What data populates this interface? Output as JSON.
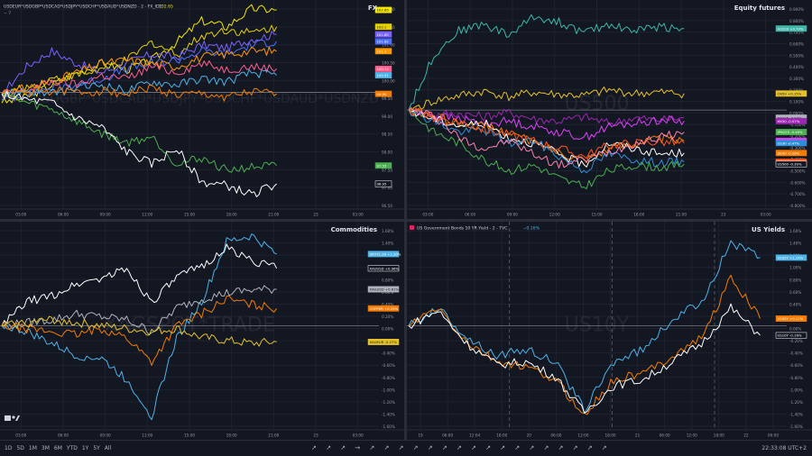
{
  "layout_title": "",
  "panels": [
    {
      "key": "fx",
      "title": "FX",
      "header_text": "USDEUR*USDGBP*USDCAD*USDJPY*USDCHF*USDAUD*USDNZD - 2 - FX_IDC",
      "header_value": "102.65",
      "watermark": "EUR*USDGBP*USDCAD*USDJPY*USDCHF*USDAUD*USDNZD",
      "legend_sub": "− 7",
      "time_labels": [
        "03:00",
        "06:00",
        "09:00",
        "12:00",
        "15:00",
        "18:00",
        "21:00",
        "23",
        "03:00"
      ],
      "y_labels": [
        "102.00",
        "101.50",
        "101.00",
        "100.50",
        "100.00",
        "99.50",
        "99.00",
        "98.50",
        "98.00",
        "97.50",
        "97.00",
        "96.50"
      ],
      "tags": [
        {
          "text": "102.65",
          "color": "#f5e700"
        },
        {
          "text": "102.1",
          "color": "#e6d000"
        },
        {
          "text": "101.85",
          "color": "#7b61ff"
        },
        {
          "text": "101.62",
          "color": "#4f6fff"
        },
        {
          "text": "101.3",
          "color": "#ff9800"
        },
        {
          "text": "100.72",
          "color": "#ff5d8f"
        },
        {
          "text": "100.51",
          "color": "#4fb3e8"
        },
        {
          "text": "99.90",
          "color": "#f57c00"
        },
        {
          "text": "97.55",
          "color": "#4caf50"
        },
        {
          "text": "96.95",
          "color": "#ffffff"
        }
      ]
    },
    {
      "key": "eq",
      "title": "Equity futures",
      "header_text": "",
      "header_value": "",
      "watermark": "US500",
      "legend_sub": "",
      "time_labels": [
        "03:00",
        "06:00",
        "09:00",
        "12:00",
        "15:00",
        "18:00",
        "21:00",
        "23",
        "03:00"
      ],
      "y_labels": [
        "0.900%",
        "0.800%",
        "0.700%",
        "0.600%",
        "0.500%",
        "0.400%",
        "0.300%",
        "0.200%",
        "0.100%",
        "0.000%",
        "-0.100%",
        "-0.200%",
        "-0.300%",
        "-0.400%",
        "-0.500%",
        "-0.600%",
        "-0.700%",
        "-0.800%"
      ],
      "tags": [
        {
          "text": "AU200 +0.74%",
          "color": "#3fb6a8"
        },
        {
          "text": "CN50 +0.15%",
          "color": "#e6c229"
        },
        {
          "text": "NK225 -0.03%",
          "color": "#b0b3bb"
        },
        {
          "text": "HK50 -0.07%",
          "color": "#9c27b0"
        },
        {
          "text": "SPX -0.1%",
          "color": "#e040fb"
        },
        {
          "text": "DE40 -0.28%",
          "color": "#f57c00"
        },
        {
          "text": "EUSTX50 -0.30%",
          "color": "#ff5722"
        },
        {
          "text": "US500 -0.39%",
          "color": "#ffffff"
        },
        {
          "text": "US30 -0.47%",
          "color": "#2f8fd6"
        },
        {
          "text": "JPN225 -0.49%",
          "color": "#4caf50"
        }
      ]
    },
    {
      "key": "cmd",
      "title": "Commodities",
      "header_text": "",
      "header_value": "",
      "watermark": "XAGSPOT*TRADE",
      "legend_sub": "",
      "time_labels": [
        "03:00",
        "06:00",
        "09:00",
        "12:00",
        "15:00",
        "18:00",
        "21:00",
        "23",
        "03:00"
      ],
      "y_labels": [
        "1.60%",
        "1.40%",
        "1.20%",
        "1.00%",
        "0.80%",
        "0.60%",
        "0.40%",
        "0.20%",
        "0.00%",
        "-0.20%",
        "-0.40%",
        "-0.60%",
        "-0.80%",
        "-1.00%",
        "-1.20%",
        "-1.40%",
        "-1.60%"
      ],
      "tags": [
        {
          "text": "SPOT1.26 +1.20%",
          "color": "#4fb3e8"
        },
        {
          "text": "XAUUSD +0.96%",
          "color": "#ffffff"
        },
        {
          "text": "XAGUSD +0.61%",
          "color": "#b0b3bb"
        },
        {
          "text": "COPPER +0.29%",
          "color": "#f57c00"
        },
        {
          "text": "XAUEUR -0.27%",
          "color": "#e6c229"
        }
      ]
    },
    {
      "key": "yld",
      "title": "US Yields",
      "header_text": "US Government Bonds 10 YR Yield - 2 - TVC",
      "header_value": "−0.16%",
      "watermark": "US10Y",
      "legend_sub": "",
      "time_labels": [
        "19",
        "06:00",
        "12:04",
        "18:00",
        "20",
        "06:00",
        "12:00",
        "18:00",
        "21",
        "06:00",
        "12:00",
        "18:00",
        "22",
        "06:00"
      ],
      "y_labels": [
        "1.60%",
        "1.40%",
        "1.20%",
        "1.00%",
        "0.80%",
        "0.60%",
        "0.40%",
        "0.20%",
        "0.00%",
        "-0.20%",
        "-0.40%",
        "-0.60%",
        "-0.80%",
        "-1.00%",
        "-1.20%",
        "-1.40%",
        "-1.60%"
      ],
      "tags": [
        {
          "text": "US02Y +1.14%",
          "color": "#4fb3e8"
        },
        {
          "text": "US05Y +0.12%",
          "color": "#f57c00"
        },
        {
          "text": "US10Y -0.16%",
          "color": "#ffffff"
        }
      ]
    }
  ],
  "bottom_bar": {
    "timeframes": [
      "1D",
      "5D",
      "1M",
      "3M",
      "6M",
      "YTD",
      "1Y",
      "5Y",
      "All"
    ],
    "tool_icons": "↗ ↗ ↗ → ↗ ↗ ↗ ↗ ↗ ↗ ↗ ↗ ↗ ↗ ↗ ↗ ↗ ↗ ↗ ↗ ↗",
    "clock": "22:33:08 UTC+2"
  },
  "chart_data": [
    {
      "type": "line",
      "title": "FX",
      "ylim": [
        96.3,
        102.8
      ],
      "grid": true,
      "baseline": 99.95,
      "series": [
        {
          "color": "#f5e700",
          "values": [
            99.6,
            99.8,
            100.2,
            100.6,
            100.9,
            100.7,
            101.0,
            101.6,
            102.3,
            102.1,
            102.7,
            102.65
          ]
        },
        {
          "color": "#e6d000",
          "values": [
            99.9,
            100.1,
            100.4,
            100.5,
            100.7,
            101.0,
            101.6,
            101.2,
            101.8,
            102.0,
            101.9,
            102.1
          ]
        },
        {
          "color": "#7b61ff",
          "values": [
            99.9,
            100.8,
            101.3,
            100.9,
            100.6,
            100.9,
            101.2,
            101.1,
            101.5,
            101.4,
            101.7,
            101.85
          ]
        },
        {
          "color": "#4f6fff",
          "values": [
            99.7,
            99.9,
            100.1,
            100.2,
            100.4,
            100.7,
            100.9,
            101.0,
            101.3,
            101.2,
            101.5,
            101.62
          ]
        },
        {
          "color": "#ff9800",
          "values": [
            99.9,
            100.1,
            100.3,
            100.6,
            100.9,
            101.0,
            100.9,
            100.8,
            101.1,
            101.2,
            101.3,
            101.3
          ]
        },
        {
          "color": "#ff5d8f",
          "values": [
            99.9,
            100.0,
            100.3,
            100.2,
            100.5,
            100.4,
            100.8,
            100.6,
            100.9,
            100.7,
            100.8,
            100.72
          ]
        },
        {
          "color": "#4fb3e8",
          "values": [
            99.9,
            100.0,
            99.9,
            100.1,
            100.2,
            100.0,
            100.3,
            100.2,
            100.4,
            100.3,
            100.6,
            100.51
          ]
        },
        {
          "color": "#f57c00",
          "values": [
            99.9,
            99.95,
            100.0,
            99.95,
            100.0,
            99.9,
            100.1,
            99.85,
            99.9,
            99.8,
            99.95,
            99.9
          ]
        },
        {
          "color": "#4caf50",
          "values": [
            99.9,
            99.6,
            99.4,
            99.0,
            98.6,
            98.3,
            98.5,
            97.6,
            97.8,
            97.4,
            97.5,
            97.55
          ]
        },
        {
          "color": "#ffffff",
          "values": [
            99.9,
            99.7,
            99.6,
            99.1,
            98.8,
            98.0,
            97.6,
            98.1,
            97.0,
            96.9,
            96.6,
            96.95
          ]
        }
      ]
    },
    {
      "type": "line",
      "title": "Equity futures",
      "ylim": [
        -0.85,
        0.95
      ],
      "grid": true,
      "baseline": 0.0,
      "series": [
        {
          "color": "#3fb6a8",
          "values": [
            0.0,
            0.5,
            0.72,
            0.78,
            0.68,
            0.85,
            0.8,
            0.7,
            0.78,
            0.72,
            0.76,
            0.74
          ]
        },
        {
          "color": "#e6c229",
          "values": [
            0.0,
            0.08,
            0.13,
            0.17,
            0.12,
            0.16,
            0.14,
            0.13,
            0.18,
            0.15,
            0.16,
            0.15
          ]
        },
        {
          "color": "#9c27b0",
          "values": [
            0.0,
            -0.04,
            -0.03,
            -0.06,
            -0.02,
            -0.08,
            -0.1,
            -0.06,
            -0.12,
            -0.07,
            -0.09,
            -0.07
          ]
        },
        {
          "color": "#e040fb",
          "values": [
            0.0,
            -0.05,
            -0.08,
            -0.12,
            -0.1,
            -0.15,
            -0.2,
            -0.25,
            -0.15,
            -0.12,
            -0.09,
            -0.1
          ]
        },
        {
          "color": "#f57c00",
          "values": [
            0.0,
            -0.06,
            -0.12,
            -0.15,
            -0.2,
            -0.3,
            -0.38,
            -0.45,
            -0.35,
            -0.3,
            -0.26,
            -0.28
          ]
        },
        {
          "color": "#ffffff",
          "values": [
            0.0,
            -0.08,
            -0.14,
            -0.12,
            -0.25,
            -0.3,
            -0.4,
            -0.5,
            -0.3,
            -0.35,
            -0.4,
            -0.39
          ]
        },
        {
          "color": "#2f8fd6",
          "values": [
            0.0,
            -0.1,
            -0.2,
            -0.18,
            -0.3,
            -0.28,
            -0.42,
            -0.55,
            -0.4,
            -0.45,
            -0.48,
            -0.47
          ]
        },
        {
          "color": "#4caf50",
          "values": [
            0.0,
            -0.2,
            -0.3,
            -0.45,
            -0.55,
            -0.5,
            -0.62,
            -0.7,
            -0.55,
            -0.5,
            -0.52,
            -0.49
          ]
        },
        {
          "color": "#ff5722",
          "values": [
            0.0,
            -0.07,
            -0.1,
            -0.18,
            -0.22,
            -0.28,
            -0.35,
            -0.42,
            -0.32,
            -0.3,
            -0.29,
            -0.3
          ]
        },
        {
          "color": "#ff80ab",
          "values": [
            0.0,
            -0.05,
            -0.25,
            -0.35,
            -0.28,
            -0.4,
            -0.5,
            -0.45,
            -0.38,
            -0.3,
            -0.25,
            -0.2
          ]
        }
      ]
    },
    {
      "type": "line",
      "title": "Commodities",
      "ylim": [
        -1.65,
        1.65
      ],
      "grid": true,
      "baseline": 0.0,
      "series": [
        {
          "color": "#4fb3e8",
          "values": [
            0.0,
            -0.1,
            -0.3,
            -0.5,
            -0.55,
            -0.9,
            -1.5,
            -0.2,
            0.4,
            1.4,
            1.5,
            1.2
          ]
        },
        {
          "color": "#ffffff",
          "values": [
            0.0,
            0.4,
            0.5,
            0.7,
            0.8,
            0.95,
            0.4,
            0.8,
            1.0,
            1.3,
            1.1,
            0.96
          ]
        },
        {
          "color": "#b0b3bb",
          "values": [
            0.0,
            0.05,
            0.1,
            0.2,
            0.15,
            0.1,
            -0.1,
            0.3,
            0.45,
            0.55,
            0.6,
            0.61
          ]
        },
        {
          "color": "#f57c00",
          "values": [
            0.0,
            -0.05,
            -0.1,
            -0.15,
            -0.05,
            -0.2,
            -0.6,
            0.0,
            0.2,
            0.45,
            0.35,
            0.29
          ]
        },
        {
          "color": "#e6c229",
          "values": [
            0.0,
            0.05,
            0.1,
            0.05,
            0.0,
            -0.05,
            -0.1,
            -0.05,
            -0.2,
            -0.25,
            -0.3,
            -0.27
          ]
        }
      ]
    },
    {
      "type": "line",
      "title": "US Yields",
      "ylim": [
        -1.65,
        1.65
      ],
      "grid": true,
      "baseline": 0.0,
      "series": [
        {
          "color": "#4fb3e8",
          "values": [
            0.0,
            0.3,
            -0.2,
            -0.5,
            -0.4,
            -0.6,
            -1.4,
            -0.6,
            -0.4,
            0.1,
            0.4,
            1.4,
            1.14
          ]
        },
        {
          "color": "#f57c00",
          "values": [
            0.0,
            0.3,
            -0.3,
            -0.6,
            -0.7,
            -0.9,
            -1.5,
            -0.9,
            -0.8,
            -0.5,
            -0.2,
            0.8,
            0.12
          ]
        },
        {
          "color": "#ffffff",
          "values": [
            0.0,
            0.25,
            -0.3,
            -0.65,
            -0.6,
            -0.85,
            -1.45,
            -1.0,
            -0.9,
            -0.6,
            -0.3,
            0.3,
            -0.16
          ]
        }
      ]
    }
  ]
}
